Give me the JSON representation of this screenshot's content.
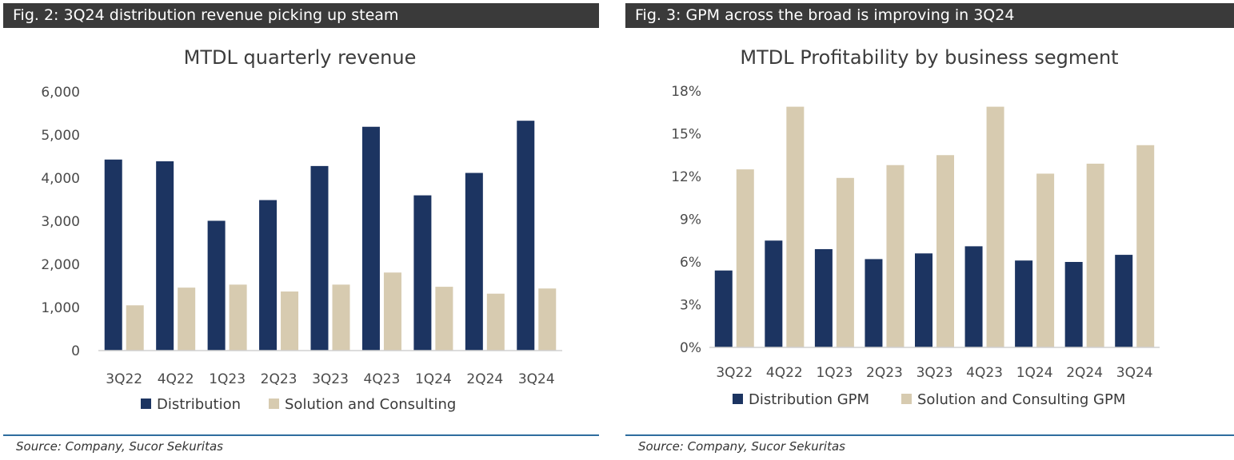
{
  "figures": [
    {
      "header": "Fig. 2: 3Q24 distribution revenue picking up steam",
      "source": "Source: Company, Sucor Sekuritas"
    },
    {
      "header": "Fig. 3: GPM across the broad is improving in 3Q24",
      "source": "Source: Company, Sucor Sekuritas"
    }
  ],
  "colors": {
    "navy": "#1c3461",
    "beige": "#d7cbb0",
    "header_bg": "#3a3a3a",
    "rule": "#2e6d9e"
  },
  "chart_data": [
    {
      "type": "bar",
      "title": "MTDL quarterly revenue",
      "xlabel": "",
      "ylabel": "",
      "categories": [
        "3Q22",
        "4Q22",
        "1Q23",
        "2Q23",
        "3Q23",
        "4Q23",
        "1Q24",
        "2Q24",
        "3Q24"
      ],
      "series": [
        {
          "name": "Distribution",
          "color": "#1c3461",
          "values": [
            4430,
            4390,
            3010,
            3490,
            4280,
            5190,
            3600,
            4120,
            5330
          ]
        },
        {
          "name": "Solution and Consulting",
          "color": "#d7cbb0",
          "values": [
            1050,
            1460,
            1530,
            1370,
            1530,
            1810,
            1480,
            1320,
            1440
          ]
        }
      ],
      "ylim": [
        0,
        6000
      ],
      "yticks": [
        0,
        1000,
        2000,
        3000,
        4000,
        5000,
        6000
      ],
      "ytick_labels": [
        "0",
        "1,000",
        "2,000",
        "3,000",
        "4,000",
        "5,000",
        "6,000"
      ],
      "grid": false,
      "legend": "bottom"
    },
    {
      "type": "bar",
      "title": "MTDL Profitability by business segment",
      "xlabel": "",
      "ylabel": "",
      "categories": [
        "3Q22",
        "4Q22",
        "1Q23",
        "2Q23",
        "3Q23",
        "4Q23",
        "1Q24",
        "2Q24",
        "3Q24"
      ],
      "series": [
        {
          "name": "Distribution GPM",
          "color": "#1c3461",
          "values": [
            5.4,
            7.5,
            6.9,
            6.2,
            6.6,
            7.1,
            6.1,
            6.0,
            6.5
          ]
        },
        {
          "name": "Solution and Consulting GPM",
          "color": "#d7cbb0",
          "values": [
            12.5,
            16.9,
            11.9,
            12.8,
            13.5,
            16.9,
            12.2,
            12.9,
            14.2
          ]
        }
      ],
      "ylim": [
        0,
        18
      ],
      "yticks": [
        0,
        3,
        6,
        9,
        12,
        15,
        18
      ],
      "ytick_labels": [
        "0%",
        "3%",
        "6%",
        "9%",
        "12%",
        "15%",
        "18%"
      ],
      "grid": false,
      "legend": "bottom"
    }
  ]
}
